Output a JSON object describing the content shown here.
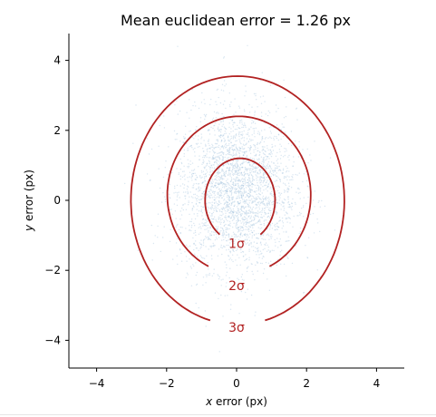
{
  "chart_data": {
    "type": "scatter",
    "title": "Mean euclidean error = 1.26 px",
    "xlabel": {
      "var": "x",
      "rest": " error (px)"
    },
    "ylabel": {
      "var": "y",
      "rest": " error (px)"
    },
    "xlim": [
      -4.8,
      4.8
    ],
    "ylim": [
      -4.8,
      4.8
    ],
    "xticks": [
      -4,
      -2,
      0,
      2,
      4
    ],
    "yticks": [
      -4,
      -2,
      0,
      2,
      4
    ],
    "tick_labels": [
      "−4",
      "−2",
      "0",
      "2",
      "4"
    ],
    "grid": false,
    "scatter": {
      "color": "#aac8e0",
      "center": [
        0.0,
        0.3
      ],
      "std": [
        0.85,
        1.15
      ],
      "description_points_estimated": 3000
    },
    "contours": [
      {
        "label": "1σ",
        "center": [
          0.1,
          0.0
        ],
        "rx": 1.0,
        "ry": 1.2,
        "label_pos": [
          0.0,
          -1.23
        ]
      },
      {
        "label": "2σ",
        "center": [
          0.07,
          0.15
        ],
        "rx": 2.05,
        "ry": 2.25,
        "label_pos": [
          0.0,
          -2.43
        ]
      },
      {
        "label": "3σ",
        "center": [
          0.03,
          0.0
        ],
        "rx": 3.05,
        "ry": 3.55,
        "label_pos": [
          0.0,
          -3.63
        ]
      }
    ],
    "contour_color": "#b22222"
  }
}
